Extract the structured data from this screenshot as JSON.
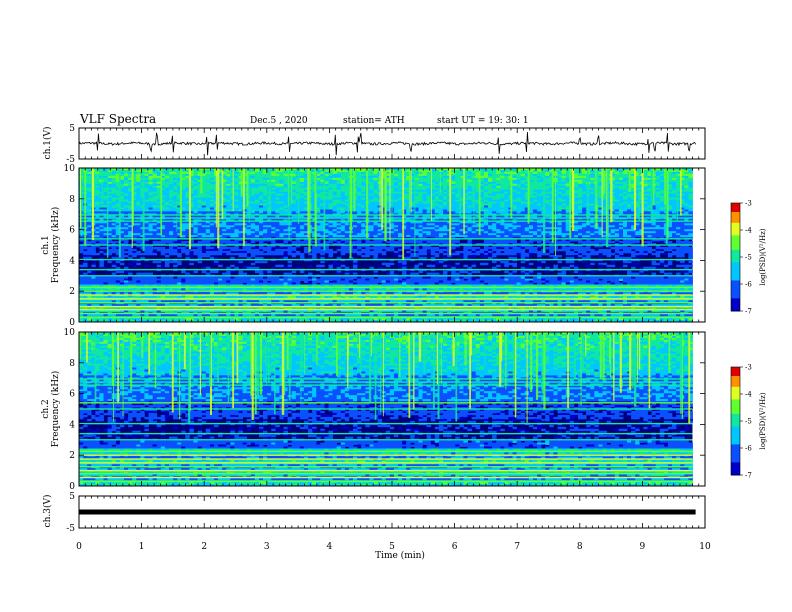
{
  "header": {
    "title": "VLF Spectra",
    "date": "Dec.5 , 2020",
    "station": "station= ATH",
    "start": "start UT = 19: 30: 1"
  },
  "chart_data": [
    {
      "type": "line",
      "ylabel": "ch.1(V)",
      "ylim": [
        -5,
        5
      ],
      "y_ticks": [
        "5",
        "-5"
      ],
      "xlim": [
        0,
        10
      ],
      "series": [
        {
          "baseline": 0,
          "noise": 0.4,
          "spikes_min": [
            0.3,
            1.15,
            1.25,
            1.5,
            2.05,
            2.2,
            3.35,
            4.1,
            4.45,
            4.5,
            5.3,
            6.7,
            7.15,
            8.0,
            8.3,
            9.1,
            9.2,
            9.4,
            9.75
          ]
        }
      ]
    },
    {
      "type": "heatmap",
      "ylabel": "ch.1",
      "ylabel2": "Frequency (kHz)",
      "ylim": [
        0,
        10
      ],
      "y_ticks": [
        "0",
        "2",
        "4",
        "6",
        "8",
        "10"
      ],
      "data_xlim": [
        0,
        9.8
      ],
      "colorbar": {
        "min": -7,
        "max": -3,
        "ticks": [
          "-3",
          "-4",
          "-5",
          "-6",
          "-7"
        ],
        "label": "log(PSD)(V²/Hz)"
      },
      "lines_khz": [
        0.3,
        0.55,
        0.8,
        1.0,
        1.25,
        1.5,
        1.75,
        2.0,
        2.25,
        3.0,
        3.4,
        4.05,
        5.0,
        5.4,
        6.55,
        6.75,
        6.95
      ],
      "sferic_density": 0.45
    },
    {
      "type": "heatmap",
      "ylabel": "ch.2",
      "ylabel2": "Frequency (kHz)",
      "ylim": [
        0,
        10
      ],
      "y_ticks": [
        "0",
        "2",
        "4",
        "6",
        "8",
        "10"
      ],
      "data_xlim": [
        0,
        9.8
      ],
      "colorbar": {
        "min": -7,
        "max": -3,
        "ticks": [
          "-3",
          "-4",
          "-5",
          "-6",
          "-7"
        ],
        "label": "log(PSD)(V²/Hz)"
      },
      "lines_khz": [
        0.3,
        0.55,
        0.8,
        1.0,
        1.25,
        1.5,
        1.75,
        2.0,
        2.25,
        3.0,
        3.4,
        4.05,
        5.0,
        5.4,
        6.55,
        6.75,
        6.95
      ],
      "sferic_density": 0.55
    },
    {
      "type": "line",
      "ylabel": "ch.3(V)",
      "ylim": [
        -5,
        5
      ],
      "y_ticks": [
        "5",
        "-5"
      ],
      "xlim": [
        0,
        10
      ],
      "series": [
        {
          "baseline": 0,
          "noise": 0.0
        }
      ]
    }
  ],
  "xaxis": {
    "label": "Time (min)",
    "ticks": [
      "0",
      "1",
      "2",
      "3",
      "4",
      "5",
      "6",
      "7",
      "8",
      "9",
      "10"
    ]
  },
  "colors": {
    "background": "#ffffff",
    "ink": "#000000"
  }
}
